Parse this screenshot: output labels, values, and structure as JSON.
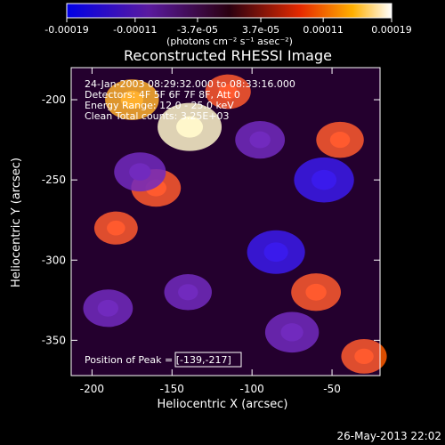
{
  "colorbar": {
    "ticks": [
      {
        "label": "-0.00019",
        "value": -0.00019
      },
      {
        "label": "-0.00011",
        "value": -0.00011
      },
      {
        "label": "-3.7e-05",
        "value": -3.7e-05
      },
      {
        "label": "3.7e-05",
        "value": 3.7e-05
      },
      {
        "label": "0.00011",
        "value": 0.00011
      },
      {
        "label": "0.00019",
        "value": 0.00019
      }
    ],
    "units_label": "(photons cm⁻² s⁻¹ asec⁻²)",
    "range": [
      -0.00019,
      0.00019
    ]
  },
  "chart_data": {
    "type": "heatmap",
    "title": "Reconstructed RHESSI Image",
    "xlabel": "Heliocentric X (arcsec)",
    "ylabel": "Heliocentric Y (arcsec)",
    "xlim": [
      -213,
      -20
    ],
    "ylim": [
      -372,
      -180
    ],
    "x_ticks": [
      {
        "label": "-200",
        "value": -200
      },
      {
        "label": "-150",
        "value": -150
      },
      {
        "label": "-100",
        "value": -100
      },
      {
        "label": "-50",
        "value": -50
      }
    ],
    "y_ticks": [
      {
        "label": "-200",
        "value": -200
      },
      {
        "label": "-250",
        "value": -250
      },
      {
        "label": "-300",
        "value": -300
      },
      {
        "label": "-350",
        "value": -350
      }
    ],
    "annotations": [
      "24-Jan-2003 08:29:32.000 to 08:33:16.000",
      "Detectors: 4F 5F 6F 7F 8F, Att 0",
      "Energy Range: 12.0 - 25.0 keV",
      "Clean    Total counts: 3.25E+03"
    ],
    "peak_label": "Position of Peak = [-139,-217]",
    "peak": {
      "x": -139,
      "y": -217
    },
    "colormap": "blue-purple-red-yellow-white",
    "intensity_features": [
      {
        "x": -139,
        "y": -217,
        "value": 0.00019
      },
      {
        "x": -175,
        "y": -200,
        "value": 0.00014
      },
      {
        "x": -160,
        "y": -255,
        "value": 0.00012
      },
      {
        "x": -115,
        "y": -195,
        "value": 0.0001
      },
      {
        "x": -45,
        "y": -225,
        "value": 0.00011
      },
      {
        "x": -60,
        "y": -320,
        "value": 0.00012
      },
      {
        "x": -185,
        "y": -280,
        "value": 9e-05
      },
      {
        "x": -30,
        "y": -360,
        "value": 0.0001
      },
      {
        "x": -55,
        "y": -250,
        "value": -0.00017
      },
      {
        "x": -85,
        "y": -295,
        "value": -0.00016
      },
      {
        "x": -75,
        "y": -345,
        "value": -0.00014
      },
      {
        "x": -170,
        "y": -245,
        "value": -0.00013
      },
      {
        "x": -190,
        "y": -330,
        "value": -0.00012
      },
      {
        "x": -95,
        "y": -225,
        "value": -0.00012
      },
      {
        "x": -140,
        "y": -320,
        "value": -0.00011
      }
    ]
  },
  "footer": {
    "timestamp": "26-May-2013 22:02"
  }
}
